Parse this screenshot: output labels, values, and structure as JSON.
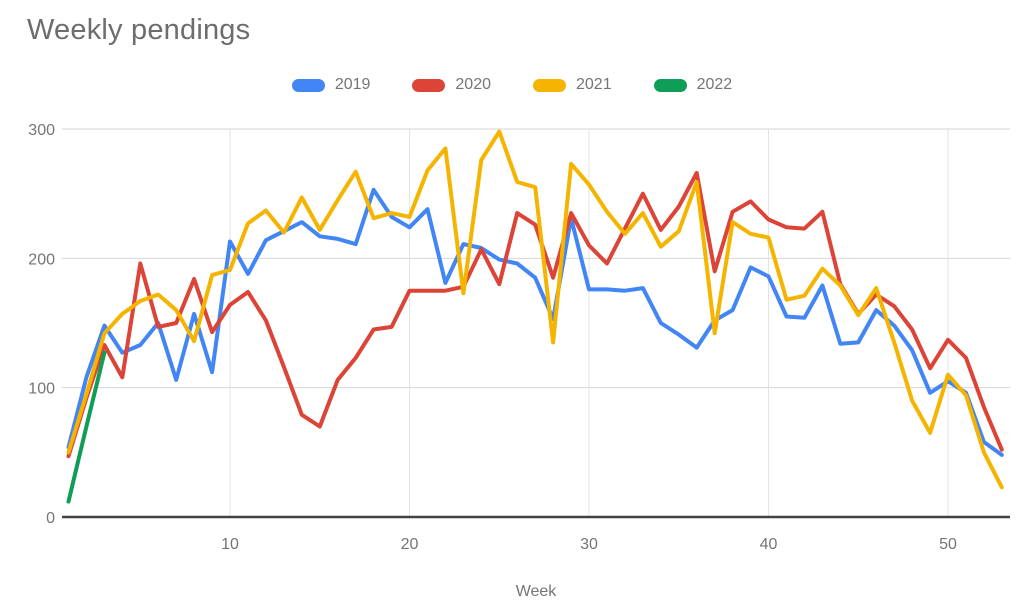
{
  "title": "Weekly pendings",
  "legend": {
    "items": [
      {
        "label": "2019",
        "color": "#4285F4"
      },
      {
        "label": "2020",
        "color": "#DB4437"
      },
      {
        "label": "2021",
        "color": "#F4B400"
      },
      {
        "label": "2022",
        "color": "#0F9D58"
      }
    ]
  },
  "x_axis": {
    "title": "Week",
    "ticks": [
      10,
      20,
      30,
      40,
      50
    ]
  },
  "y_axis": {
    "ticks": [
      0,
      100,
      200,
      300
    ]
  },
  "chart_data": {
    "type": "line",
    "title": "Weekly pendings",
    "xlabel": "Week",
    "ylabel": "",
    "grid": true,
    "legend_position": "top",
    "x_range": [
      1,
      53
    ],
    "ylim": [
      0,
      300
    ],
    "y_ticks": [
      0,
      100,
      200,
      300
    ],
    "x_ticks": [
      10,
      20,
      30,
      40,
      50
    ],
    "x": [
      1,
      2,
      3,
      4,
      5,
      6,
      7,
      8,
      9,
      10,
      11,
      12,
      13,
      14,
      15,
      16,
      17,
      18,
      19,
      20,
      21,
      22,
      23,
      24,
      25,
      26,
      27,
      28,
      29,
      30,
      31,
      32,
      33,
      34,
      35,
      36,
      37,
      38,
      39,
      40,
      41,
      42,
      43,
      44,
      45,
      46,
      47,
      48,
      49,
      50,
      51,
      52,
      53
    ],
    "series": [
      {
        "name": "2019",
        "color": "#4285F4",
        "values": [
          54,
          108,
          148,
          127,
          133,
          150,
          106,
          157,
          112,
          213,
          188,
          214,
          221,
          228,
          217,
          215,
          211,
          253,
          232,
          224,
          238,
          181,
          211,
          208,
          199,
          196,
          185,
          153,
          231,
          176,
          176,
          175,
          177,
          150,
          141,
          131,
          152,
          160,
          193,
          186,
          155,
          154,
          179,
          134,
          135,
          160,
          148,
          129,
          96,
          105,
          96,
          58,
          48
        ]
      },
      {
        "name": "2020",
        "color": "#DB4437",
        "values": [
          47,
          92,
          133,
          108,
          196,
          147,
          150,
          184,
          143,
          164,
          174,
          152,
          116,
          79,
          70,
          106,
          123,
          145,
          147,
          175,
          175,
          175,
          178,
          207,
          180,
          235,
          226,
          185,
          235,
          210,
          196,
          223,
          250,
          222,
          240,
          266,
          190,
          236,
          244,
          230,
          224,
          223,
          236,
          180,
          157,
          172,
          163,
          145,
          115,
          137,
          123,
          85,
          52
        ]
      },
      {
        "name": "2021",
        "color": "#F4B400",
        "values": [
          50,
          95,
          142,
          157,
          167,
          172,
          160,
          136,
          187,
          191,
          227,
          237,
          220,
          247,
          222,
          245,
          267,
          231,
          235,
          232,
          268,
          285,
          173,
          276,
          298,
          259,
          255,
          135,
          273,
          257,
          236,
          219,
          235,
          209,
          221,
          259,
          142,
          228,
          219,
          216,
          168,
          171,
          192,
          179,
          156,
          177,
          135,
          90,
          65,
          110,
          94,
          50,
          23
        ]
      },
      {
        "name": "2022",
        "color": "#0F9D58",
        "values": [
          12,
          70,
          127
        ]
      }
    ]
  }
}
